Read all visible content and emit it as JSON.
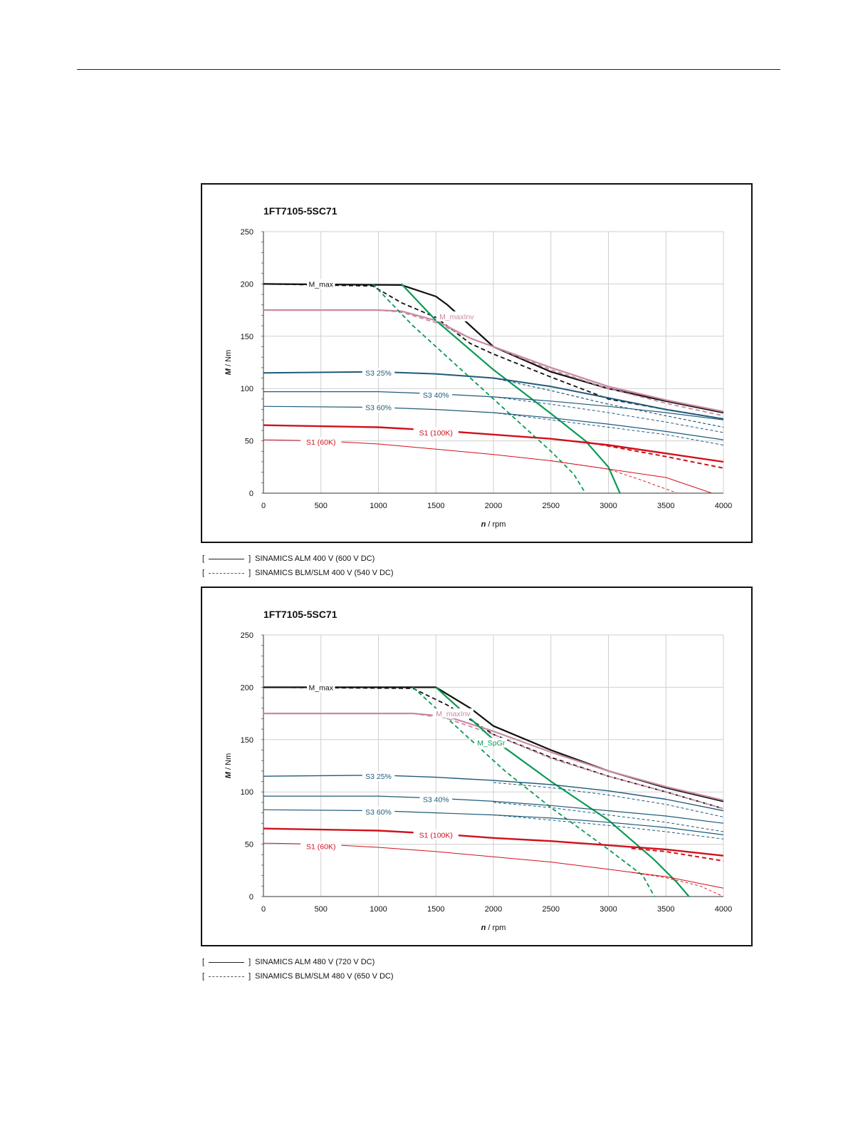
{
  "chart_data": [
    {
      "type": "line",
      "title": "1FT7105-5SC71",
      "xlabel": "n / rpm",
      "ylabel": "M / Nm",
      "xlim": [
        0,
        4000
      ],
      "ylim": [
        0,
        250
      ],
      "xticks": [
        0,
        500,
        1000,
        1500,
        2000,
        2500,
        3000,
        3500,
        4000
      ],
      "yticks": [
        0,
        50,
        100,
        150,
        200,
        250
      ],
      "grid": true,
      "legend": [
        {
          "bracket_open": "[",
          "bracket_close": "]",
          "label": "SINAMICS ALM 400 V (600 V DC)",
          "style": "solid"
        },
        {
          "bracket_open": "[",
          "bracket_close": "]",
          "label": "SINAMICS BLM/SLM 400 V (540 V DC)",
          "style": "dashed"
        }
      ],
      "series": [
        {
          "name": "M_max",
          "color": "#111111",
          "style": "solid",
          "width": 2.2,
          "x": [
            0,
            1200,
            1500,
            1600,
            2000,
            2500,
            3000,
            3500,
            4000
          ],
          "y": [
            200,
            199,
            188,
            180,
            140,
            116,
            100,
            88,
            77
          ]
        },
        {
          "color": "#111111",
          "style": "dashed",
          "width": 1.8,
          "x": [
            0,
            950,
            1200,
            1500,
            1800,
            2000,
            2500,
            3000,
            3500,
            4000
          ],
          "y": [
            200,
            198,
            182,
            168,
            143,
            133,
            111,
            90,
            80,
            71
          ]
        },
        {
          "name": "M_maxInv",
          "color": "#c98aa3",
          "style": "solid",
          "width": 2.2,
          "x": [
            0,
            1000,
            1200,
            1500,
            1800,
            2000,
            2500,
            3000,
            3500,
            4000
          ],
          "y": [
            175,
            175,
            174,
            165,
            148,
            140,
            120,
            102,
            89,
            78
          ]
        },
        {
          "color": "#c98aa3",
          "style": "dashed",
          "width": 1.8,
          "x": [
            0,
            1000,
            1200,
            1500,
            1800,
            2000,
            2500,
            3000,
            3500,
            4000
          ],
          "y": [
            175,
            175,
            173,
            163,
            148,
            140,
            118,
            100,
            86,
            74
          ]
        },
        {
          "color": "#0a9a55",
          "style": "solid",
          "width": 2.2,
          "x": [
            1200,
            1500,
            2000,
            2500,
            2800,
            3000,
            3100
          ],
          "y": [
            200,
            165,
            118,
            76,
            50,
            25,
            0
          ]
        },
        {
          "color": "#0a9a55",
          "style": "dashed",
          "width": 1.8,
          "x": [
            950,
            1300,
            1700,
            2100,
            2500,
            2700,
            2800
          ],
          "y": [
            200,
            160,
            120,
            80,
            40,
            18,
            0
          ]
        },
        {
          "name": "S3 25%",
          "color": "#1f5a7a",
          "style": "solid",
          "width": 2.0,
          "x": [
            0,
            1000,
            1500,
            2000,
            2500,
            3000,
            3500,
            4000
          ],
          "y": [
            115,
            116,
            114,
            110,
            102,
            91,
            80,
            71
          ]
        },
        {
          "color": "#1f5a7a",
          "style": "dashed",
          "width": 1.2,
          "x": [
            2000,
            2500,
            3000,
            3500,
            4000
          ],
          "y": [
            110,
            98,
            85,
            74,
            63
          ]
        },
        {
          "name": "S3 40%",
          "color": "#1f5a7a",
          "style": "solid",
          "width": 1.2,
          "x": [
            0,
            1000,
            1500,
            2000,
            2500,
            3000,
            3500,
            4000
          ],
          "y": [
            97,
            97,
            95,
            92,
            88,
            83,
            77,
            70
          ]
        },
        {
          "color": "#1f5a7a",
          "style": "dashed",
          "width": 1.0,
          "x": [
            2000,
            2500,
            3000,
            3500,
            4000
          ],
          "y": [
            92,
            85,
            77,
            68,
            58
          ]
        },
        {
          "name": "S3 60%",
          "color": "#1f5a7a",
          "style": "solid",
          "width": 1.2,
          "x": [
            0,
            1000,
            1500,
            2000,
            2500,
            3000,
            3500,
            4000
          ],
          "y": [
            83,
            82,
            80,
            77,
            72,
            66,
            59,
            51
          ]
        },
        {
          "color": "#1f5a7a",
          "style": "dashed",
          "width": 1.0,
          "x": [
            2000,
            2500,
            3000,
            3500,
            4000
          ],
          "y": [
            77,
            70,
            63,
            56,
            46
          ]
        },
        {
          "name": "S1 (100K)",
          "color": "#d0111b",
          "style": "solid",
          "width": 2.4,
          "x": [
            0,
            1000,
            1500,
            2000,
            2500,
            3000,
            3500,
            4000
          ],
          "y": [
            65,
            63,
            60,
            56,
            52,
            46,
            38,
            30
          ]
        },
        {
          "color": "#d0111b",
          "style": "dashed",
          "width": 2.0,
          "x": [
            2800,
            3000,
            3500,
            4000
          ],
          "y": [
            49,
            45,
            35,
            24
          ]
        },
        {
          "name": "S1 (60K)",
          "color": "#d0111b",
          "style": "solid",
          "width": 1.0,
          "x": [
            0,
            500,
            1000,
            1500,
            2000,
            2500,
            3000,
            3500,
            3900
          ],
          "y": [
            51,
            50,
            47,
            42,
            37,
            31,
            23,
            15,
            0
          ]
        },
        {
          "color": "#d0111b",
          "style": "dashed",
          "width": 0.9,
          "x": [
            2500,
            3000,
            3300,
            3600
          ],
          "y": [
            31,
            23,
            12,
            0
          ]
        }
      ],
      "annotations": [
        {
          "text": "M_max",
          "x": 500,
          "y": 200,
          "color": "#111111"
        },
        {
          "text": "M_maxInv",
          "x": 1680,
          "y": 169,
          "color": "#c98aa3"
        },
        {
          "text": "S3 25%",
          "x": 1000,
          "y": 115,
          "color": "#1f5a7a"
        },
        {
          "text": "S3 40%",
          "x": 1500,
          "y": 94,
          "color": "#1f5a7a"
        },
        {
          "text": "S3 60%",
          "x": 1000,
          "y": 82,
          "color": "#1f5a7a"
        },
        {
          "text": "S1 (100K)",
          "x": 1500,
          "y": 58,
          "color": "#d0111b"
        },
        {
          "text": "S1 (60K)",
          "x": 500,
          "y": 49,
          "color": "#d0111b"
        }
      ]
    },
    {
      "type": "line",
      "title": "1FT7105-5SC71",
      "xlabel": "n / rpm",
      "ylabel": "M / Nm",
      "xlim": [
        0,
        4000
      ],
      "ylim": [
        0,
        250
      ],
      "xticks": [
        0,
        500,
        1000,
        1500,
        2000,
        2500,
        3000,
        3500,
        4000
      ],
      "yticks": [
        0,
        50,
        100,
        150,
        200,
        250
      ],
      "grid": true,
      "legend": [
        {
          "bracket_open": "[",
          "bracket_close": "]",
          "label": "SINAMICS ALM 480 V (720 V DC)",
          "style": "solid"
        },
        {
          "bracket_open": "[",
          "bracket_close": "]",
          "label": "SINAMICS BLM/SLM 480 V (650 V DC)",
          "style": "dashed"
        }
      ],
      "series": [
        {
          "name": "M_max",
          "color": "#111111",
          "style": "solid",
          "width": 2.2,
          "x": [
            0,
            1500,
            1800,
            2000,
            2500,
            3000,
            3500,
            4000
          ],
          "y": [
            200,
            200,
            180,
            163,
            140,
            120,
            104,
            91
          ]
        },
        {
          "color": "#111111",
          "style": "dashed",
          "width": 1.8,
          "x": [
            0,
            1300,
            1600,
            2000,
            2500,
            3000,
            3500,
            4000
          ],
          "y": [
            200,
            199,
            183,
            155,
            133,
            115,
            100,
            84
          ]
        },
        {
          "name": "M_maxInv",
          "color": "#c98aa3",
          "style": "solid",
          "width": 2.2,
          "x": [
            0,
            1300,
            1600,
            2000,
            2500,
            3000,
            3500,
            4000
          ],
          "y": [
            175,
            175,
            172,
            158,
            138,
            120,
            105,
            92
          ]
        },
        {
          "color": "#c98aa3",
          "style": "dashed",
          "width": 1.8,
          "x": [
            0,
            1300,
            1600,
            2000,
            2500,
            3000,
            3500,
            4000
          ],
          "y": [
            175,
            175,
            170,
            155,
            132,
            115,
            100,
            84
          ]
        },
        {
          "name": "M_SpGr",
          "color": "#0a9a55",
          "style": "solid",
          "width": 2.2,
          "x": [
            1500,
            2000,
            2500,
            3000,
            3400,
            3600,
            3700
          ],
          "y": [
            200,
            150,
            110,
            73,
            35,
            13,
            0
          ]
        },
        {
          "color": "#0a9a55",
          "style": "dashed",
          "width": 1.8,
          "x": [
            1300,
            1700,
            2100,
            2500,
            3000,
            3300,
            3400
          ],
          "y": [
            200,
            160,
            120,
            85,
            45,
            20,
            0
          ]
        },
        {
          "name": "S3 25%",
          "color": "#1f5a7a",
          "style": "solid",
          "width": 1.4,
          "x": [
            0,
            1000,
            1500,
            2000,
            2500,
            3000,
            3500,
            4000
          ],
          "y": [
            115,
            116,
            114,
            111,
            107,
            101,
            93,
            82
          ]
        },
        {
          "color": "#1f5a7a",
          "style": "dashed",
          "width": 1.0,
          "x": [
            2000,
            2500,
            3000,
            3500,
            4000
          ],
          "y": [
            109,
            104,
            97,
            88,
            76
          ]
        },
        {
          "name": "S3 40%",
          "color": "#1f5a7a",
          "style": "solid",
          "width": 1.2,
          "x": [
            0,
            1000,
            1500,
            2000,
            2500,
            3000,
            3500,
            4000
          ],
          "y": [
            96,
            96,
            94,
            91,
            87,
            82,
            77,
            70
          ]
        },
        {
          "color": "#1f5a7a",
          "style": "dashed",
          "width": 1.0,
          "x": [
            2000,
            2500,
            3000,
            3500,
            4000
          ],
          "y": [
            90,
            85,
            78,
            71,
            62
          ]
        },
        {
          "name": "S3 60%",
          "color": "#1f5a7a",
          "style": "solid",
          "width": 1.2,
          "x": [
            0,
            1000,
            1500,
            2000,
            2500,
            3000,
            3500,
            4000
          ],
          "y": [
            83,
            82,
            80,
            78,
            75,
            71,
            66,
            59
          ]
        },
        {
          "color": "#1f5a7a",
          "style": "dashed",
          "width": 1.0,
          "x": [
            2000,
            2500,
            3000,
            3500,
            4000
          ],
          "y": [
            78,
            73,
            68,
            62,
            55
          ]
        },
        {
          "name": "S1 (100K)",
          "color": "#d0111b",
          "style": "solid",
          "width": 2.4,
          "x": [
            0,
            1000,
            1500,
            2000,
            2500,
            3000,
            3500,
            4000
          ],
          "y": [
            65,
            63,
            60,
            56,
            53,
            49,
            45,
            39
          ]
        },
        {
          "color": "#d0111b",
          "style": "dashed",
          "width": 2.0,
          "x": [
            3200,
            3500,
            4000
          ],
          "y": [
            46,
            43,
            34
          ]
        },
        {
          "name": "S1 (60K)",
          "color": "#d0111b",
          "style": "solid",
          "width": 1.0,
          "x": [
            0,
            500,
            1000,
            1500,
            2000,
            2500,
            3000,
            3500,
            4000
          ],
          "y": [
            51,
            50,
            47,
            43,
            38,
            33,
            26,
            19,
            8
          ]
        },
        {
          "color": "#d0111b",
          "style": "dashed",
          "width": 0.9,
          "x": [
            3200,
            3500,
            3800,
            4000
          ],
          "y": [
            23,
            18,
            10,
            0
          ]
        }
      ],
      "annotations": [
        {
          "text": "M_max",
          "x": 500,
          "y": 200,
          "color": "#111111"
        },
        {
          "text": "M_maxInv",
          "x": 1650,
          "y": 175,
          "color": "#c98aa3"
        },
        {
          "text": "M_SpGr",
          "x": 1980,
          "y": 147,
          "color": "#0a9a55"
        },
        {
          "text": "S3 25%",
          "x": 1000,
          "y": 115,
          "color": "#1f5a7a"
        },
        {
          "text": "S3 40%",
          "x": 1500,
          "y": 93,
          "color": "#1f5a7a"
        },
        {
          "text": "S3 60%",
          "x": 1000,
          "y": 81,
          "color": "#1f5a7a"
        },
        {
          "text": "S1 (100K)",
          "x": 1500,
          "y": 59,
          "color": "#d0111b"
        },
        {
          "text": "S1 (60K)",
          "x": 500,
          "y": 48,
          "color": "#d0111b"
        }
      ]
    }
  ]
}
